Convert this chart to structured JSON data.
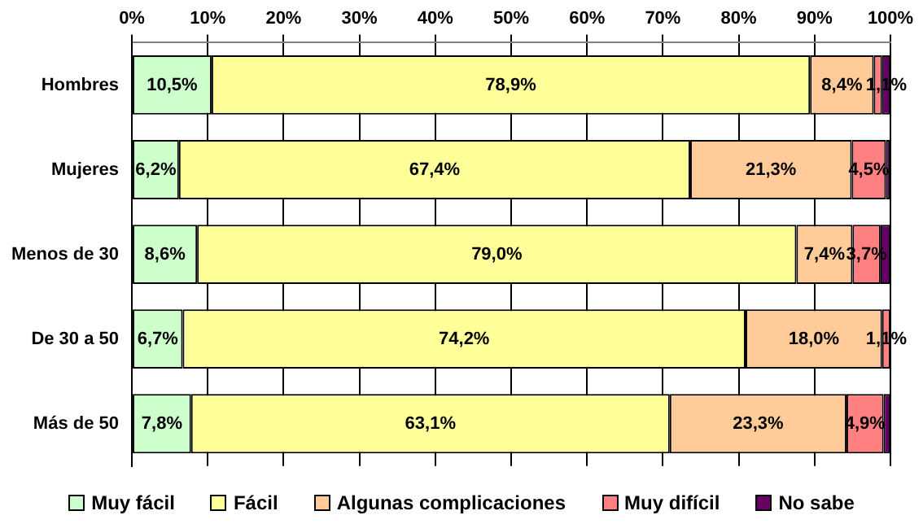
{
  "chart_data": {
    "type": "bar",
    "orientation": "horizontal",
    "stacked": true,
    "categories": [
      "Hombres",
      "Mujeres",
      "Menos de 30",
      "De 30 a 50",
      "Más de 50"
    ],
    "series": [
      {
        "name": "Muy fácil",
        "color": "#ccffcc",
        "values": [
          10.5,
          6.2,
          8.6,
          6.7,
          7.8
        ],
        "value_labels": [
          "10,5%",
          "6,2%",
          "8,6%",
          "6,7%",
          "7,8%"
        ]
      },
      {
        "name": "Fácil",
        "color": "#ffff99",
        "values": [
          78.9,
          67.4,
          79.0,
          74.2,
          63.1
        ],
        "value_labels": [
          "78,9%",
          "67,4%",
          "79,0%",
          "74,2%",
          "63,1%"
        ]
      },
      {
        "name": "Algunas complicaciones",
        "color": "#ffcc99",
        "values": [
          8.4,
          21.3,
          7.4,
          18.0,
          23.3
        ],
        "value_labels": [
          "8,4%",
          "21,3%",
          "7,4%",
          "18,0%",
          "23,3%"
        ]
      },
      {
        "name": "Muy difícil",
        "color": "#ff8080",
        "values": [
          1.1,
          4.5,
          3.7,
          1.1,
          4.9
        ],
        "value_labels": [
          null,
          "4,5%",
          "3,7%",
          "1,1%",
          "4,9%"
        ]
      },
      {
        "name": "No sabe",
        "color": "#660066",
        "values": [
          1.1,
          0.6,
          1.3,
          0,
          0.9
        ],
        "value_labels": [
          "1,1%",
          null,
          null,
          null,
          null
        ]
      }
    ],
    "xlim": [
      0,
      100
    ],
    "xticks": [
      {
        "value": 0,
        "label": "0%"
      },
      {
        "value": 10,
        "label": "10%"
      },
      {
        "value": 20,
        "label": "20%"
      },
      {
        "value": 30,
        "label": "30%"
      },
      {
        "value": 40,
        "label": "40%"
      },
      {
        "value": 50,
        "label": "50%"
      },
      {
        "value": 60,
        "label": "60%"
      },
      {
        "value": 70,
        "label": "70%"
      },
      {
        "value": 80,
        "label": "80%"
      },
      {
        "value": 90,
        "label": "90%"
      },
      {
        "value": 100,
        "label": "100%"
      }
    ],
    "grid": "x",
    "legend": "bottom"
  }
}
